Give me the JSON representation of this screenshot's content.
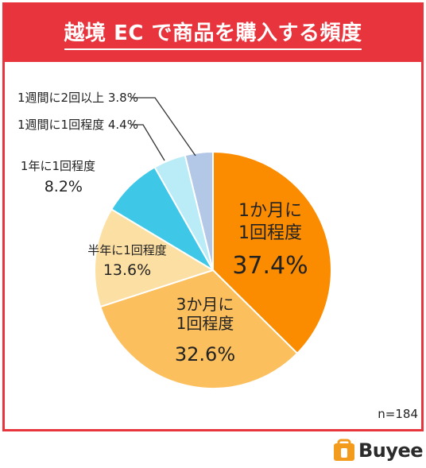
{
  "title": "越境 EC で商品を購入する頻度",
  "sample_size": "n=184",
  "brand": "Buyee",
  "chart_data": {
    "type": "pie",
    "title": "越境 EC で商品を購入する頻度",
    "slices": [
      {
        "label_lines": [
          "1か月に",
          "1回程度"
        ],
        "value": 37.4,
        "value_text": "37.4%",
        "color": "#fb8c00"
      },
      {
        "label_lines": [
          "3か月に",
          "1回程度"
        ],
        "value": 32.6,
        "value_text": "32.6%",
        "color": "#fbbf5d"
      },
      {
        "label_lines": [
          "半年に1回程度"
        ],
        "value": 13.6,
        "value_text": "13.6%",
        "color": "#fcdfa3"
      },
      {
        "label_lines": [
          "1年に1回程度"
        ],
        "value": 8.2,
        "value_text": "8.2%",
        "color": "#3fc7e8"
      },
      {
        "label_lines": [
          "1週間に1回程度"
        ],
        "value": 4.4,
        "value_text": "4.4%",
        "color": "#b9ecf6"
      },
      {
        "label_lines": [
          "1週間に2回以上"
        ],
        "value": 3.8,
        "value_text": "3.8%",
        "color": "#b3c7e6"
      }
    ]
  }
}
